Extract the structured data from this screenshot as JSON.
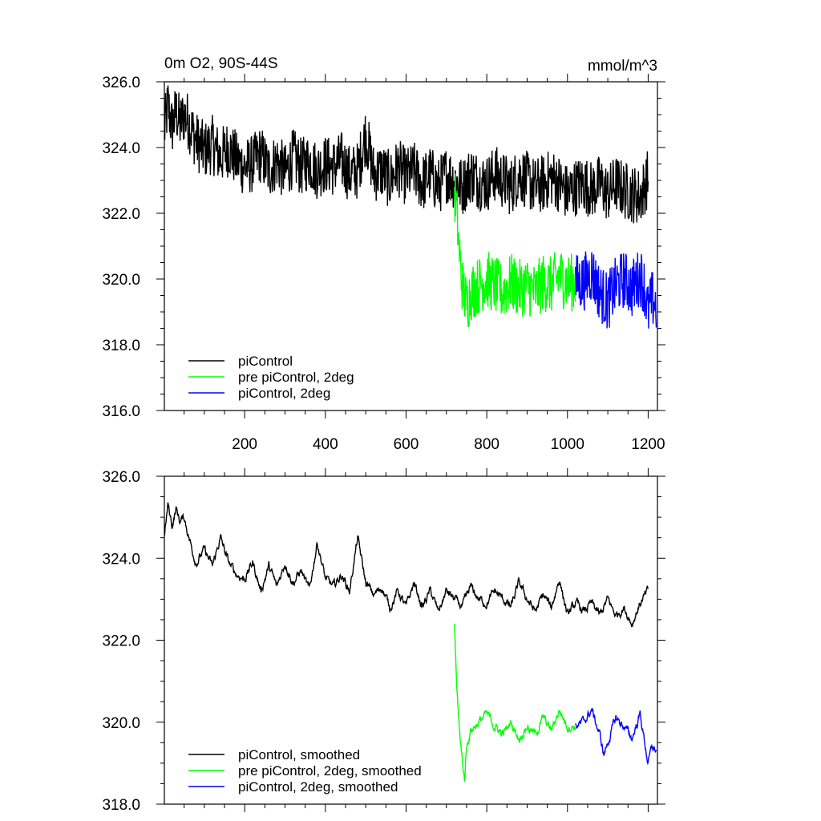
{
  "chart_data": [
    {
      "type": "line",
      "title": "0m O2, 90S-44S",
      "units": "mmol/m^3",
      "xlim": [
        1,
        1223
      ],
      "ylim": [
        316,
        326
      ],
      "xticks": [
        200,
        400,
        600,
        800,
        1000,
        1200
      ],
      "xtick_labels": [
        "200",
        "400",
        "600",
        "800",
        "1000",
        "1200"
      ],
      "yticks": [
        316,
        318,
        320,
        322,
        324,
        326
      ],
      "ytick_labels": [
        "316.0",
        "318.0",
        "320.0",
        "322.0",
        "324.0",
        "326.0"
      ],
      "grid": false,
      "legend_position": "bottom-left",
      "series": [
        {
          "name": "piControl",
          "color": "#000000",
          "x": [
            1,
            10,
            20,
            30,
            40,
            50,
            60,
            80,
            100,
            120,
            140,
            160,
            180,
            200,
            220,
            240,
            260,
            280,
            300,
            320,
            340,
            360,
            380,
            400,
            420,
            440,
            460,
            480,
            500,
            520,
            540,
            560,
            580,
            600,
            620,
            640,
            660,
            680,
            700,
            720,
            740,
            760,
            780,
            800,
            820,
            840,
            860,
            880,
            900,
            920,
            940,
            960,
            980,
            1000,
            1020,
            1040,
            1060,
            1080,
            1100,
            1120,
            1140,
            1160,
            1180,
            1200
          ],
          "y": [
            324.5,
            325.3,
            324.6,
            325.1,
            324.7,
            325.0,
            324.8,
            324.2,
            323.9,
            324.1,
            323.7,
            324.0,
            323.6,
            323.4,
            323.5,
            323.8,
            323.3,
            323.6,
            323.2,
            323.7,
            323.4,
            323.6,
            323.3,
            323.5,
            323.4,
            323.6,
            323.2,
            323.3,
            324.4,
            323.2,
            323.3,
            323.0,
            323.4,
            323.1,
            323.3,
            322.9,
            323.2,
            322.8,
            323.2,
            323.0,
            322.8,
            323.2,
            323.0,
            322.9,
            323.2,
            323.0,
            322.8,
            323.2,
            323.0,
            322.8,
            322.9,
            323.1,
            322.9,
            322.6,
            322.8,
            322.9,
            322.7,
            322.9,
            322.6,
            322.9,
            322.7,
            322.6,
            322.5,
            323.1
          ],
          "amplitude": 0.9
        },
        {
          "name": "pre piControl, 2deg",
          "color": "#00ff00",
          "x": [
            720,
            725,
            730,
            735,
            740,
            745,
            750,
            760,
            780,
            800,
            820,
            840,
            860,
            880,
            900,
            920,
            940,
            960,
            980,
            1000,
            1020
          ],
          "y": [
            322.6,
            322.2,
            321.2,
            320.4,
            319.8,
            319.5,
            319.2,
            319.6,
            319.8,
            320.0,
            319.8,
            319.6,
            319.9,
            319.7,
            319.8,
            319.6,
            319.9,
            319.8,
            320.1,
            319.9,
            319.9
          ],
          "amplitude": 0.9
        },
        {
          "name": "piControl, 2deg",
          "color": "#0000ff",
          "x": [
            1020,
            1040,
            1060,
            1080,
            1100,
            1120,
            1140,
            1160,
            1180,
            1190,
            1200,
            1210,
            1220
          ],
          "y": [
            319.9,
            319.9,
            320.2,
            319.6,
            319.3,
            319.8,
            320.0,
            319.7,
            320.1,
            319.8,
            319.0,
            319.4,
            319.2
          ],
          "amplitude": 0.9
        }
      ],
      "legend": [
        "piControl",
        "pre piControl, 2deg",
        "piControl, 2deg"
      ]
    },
    {
      "type": "line",
      "title": "",
      "units": "",
      "xlim": [
        1,
        1223
      ],
      "ylim": [
        318,
        326
      ],
      "xticks": [
        200,
        400,
        600,
        800,
        1000,
        1200
      ],
      "yticks": [
        318,
        320,
        322,
        324,
        326
      ],
      "ytick_labels": [
        "318.0",
        "320.0",
        "322.0",
        "324.0",
        "326.0"
      ],
      "grid": false,
      "legend_position": "bottom-left",
      "series": [
        {
          "name": "piControl, smoothed",
          "color": "#000000",
          "x": [
            1,
            10,
            20,
            30,
            40,
            50,
            60,
            70,
            80,
            100,
            120,
            140,
            160,
            180,
            200,
            220,
            240,
            260,
            280,
            300,
            320,
            340,
            360,
            380,
            400,
            420,
            440,
            460,
            480,
            500,
            520,
            540,
            560,
            580,
            600,
            620,
            640,
            660,
            680,
            700,
            720,
            740,
            760,
            780,
            800,
            820,
            840,
            860,
            880,
            900,
            920,
            940,
            960,
            980,
            1000,
            1020,
            1040,
            1060,
            1080,
            1100,
            1120,
            1140,
            1160,
            1180,
            1200
          ],
          "y": [
            324.5,
            325.3,
            324.8,
            325.2,
            324.9,
            325.0,
            324.6,
            324.2,
            323.9,
            324.2,
            323.8,
            324.5,
            323.9,
            323.6,
            323.5,
            323.9,
            323.2,
            323.8,
            323.3,
            323.9,
            323.4,
            323.7,
            323.2,
            324.4,
            323.5,
            323.3,
            323.6,
            323.2,
            324.5,
            323.4,
            323.1,
            323.3,
            322.8,
            323.2,
            322.8,
            323.4,
            322.8,
            323.2,
            322.7,
            323.2,
            323.0,
            322.8,
            323.3,
            323.0,
            322.9,
            323.2,
            323.0,
            322.8,
            323.4,
            323.0,
            322.7,
            323.1,
            322.8,
            323.5,
            322.6,
            322.9,
            322.7,
            322.9,
            322.6,
            323.0,
            322.6,
            322.8,
            322.4,
            322.9,
            323.2
          ],
          "amplitude": 0.3
        },
        {
          "name": "pre piControl, 2deg, smoothed",
          "color": "#00ff00",
          "x": [
            720,
            725,
            730,
            735,
            740,
            745,
            750,
            760,
            780,
            800,
            820,
            840,
            860,
            880,
            900,
            920,
            940,
            960,
            980,
            1000,
            1020
          ],
          "y": [
            322.4,
            321.0,
            320.1,
            319.5,
            319.0,
            318.6,
            319.4,
            319.8,
            320.0,
            320.2,
            319.9,
            319.7,
            320.0,
            319.6,
            319.9,
            319.7,
            320.1,
            319.8,
            320.3,
            319.9,
            319.9
          ],
          "amplitude": 0.3
        },
        {
          "name": "piControl, 2deg, smoothed",
          "color": "#0000ff",
          "x": [
            1020,
            1040,
            1060,
            1080,
            1090,
            1100,
            1120,
            1140,
            1160,
            1180,
            1190,
            1200,
            1210,
            1220
          ],
          "y": [
            319.9,
            320.0,
            320.3,
            319.7,
            319.2,
            319.5,
            320.1,
            319.9,
            319.6,
            320.2,
            319.6,
            319.0,
            319.4,
            319.3
          ],
          "amplitude": 0.3
        }
      ],
      "legend": [
        "piControl, smoothed",
        "pre piControl, 2deg, smoothed",
        "piControl, 2deg, smoothed"
      ]
    }
  ]
}
